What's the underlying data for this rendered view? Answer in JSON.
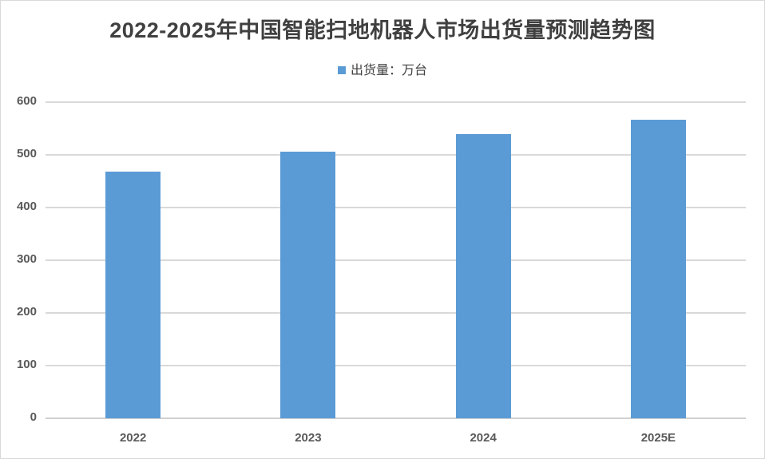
{
  "chart_data": {
    "type": "bar",
    "title": "2022-2025年中国智能扫地机器人市场出货量预测趋势图",
    "legend": [
      "出货量：万台"
    ],
    "legend_position": "top",
    "categories": [
      "2022",
      "2023",
      "2024",
      "2025E"
    ],
    "series": [
      {
        "name": "出货量：万台",
        "values": [
          468,
          506,
          539,
          567
        ],
        "color": "#5b9bd5"
      }
    ],
    "xlabel": "",
    "ylabel": "",
    "ylim": [
      0,
      600
    ],
    "yticks": [
      "0",
      "100",
      "200",
      "300",
      "400",
      "500",
      "600"
    ],
    "grid": true
  }
}
